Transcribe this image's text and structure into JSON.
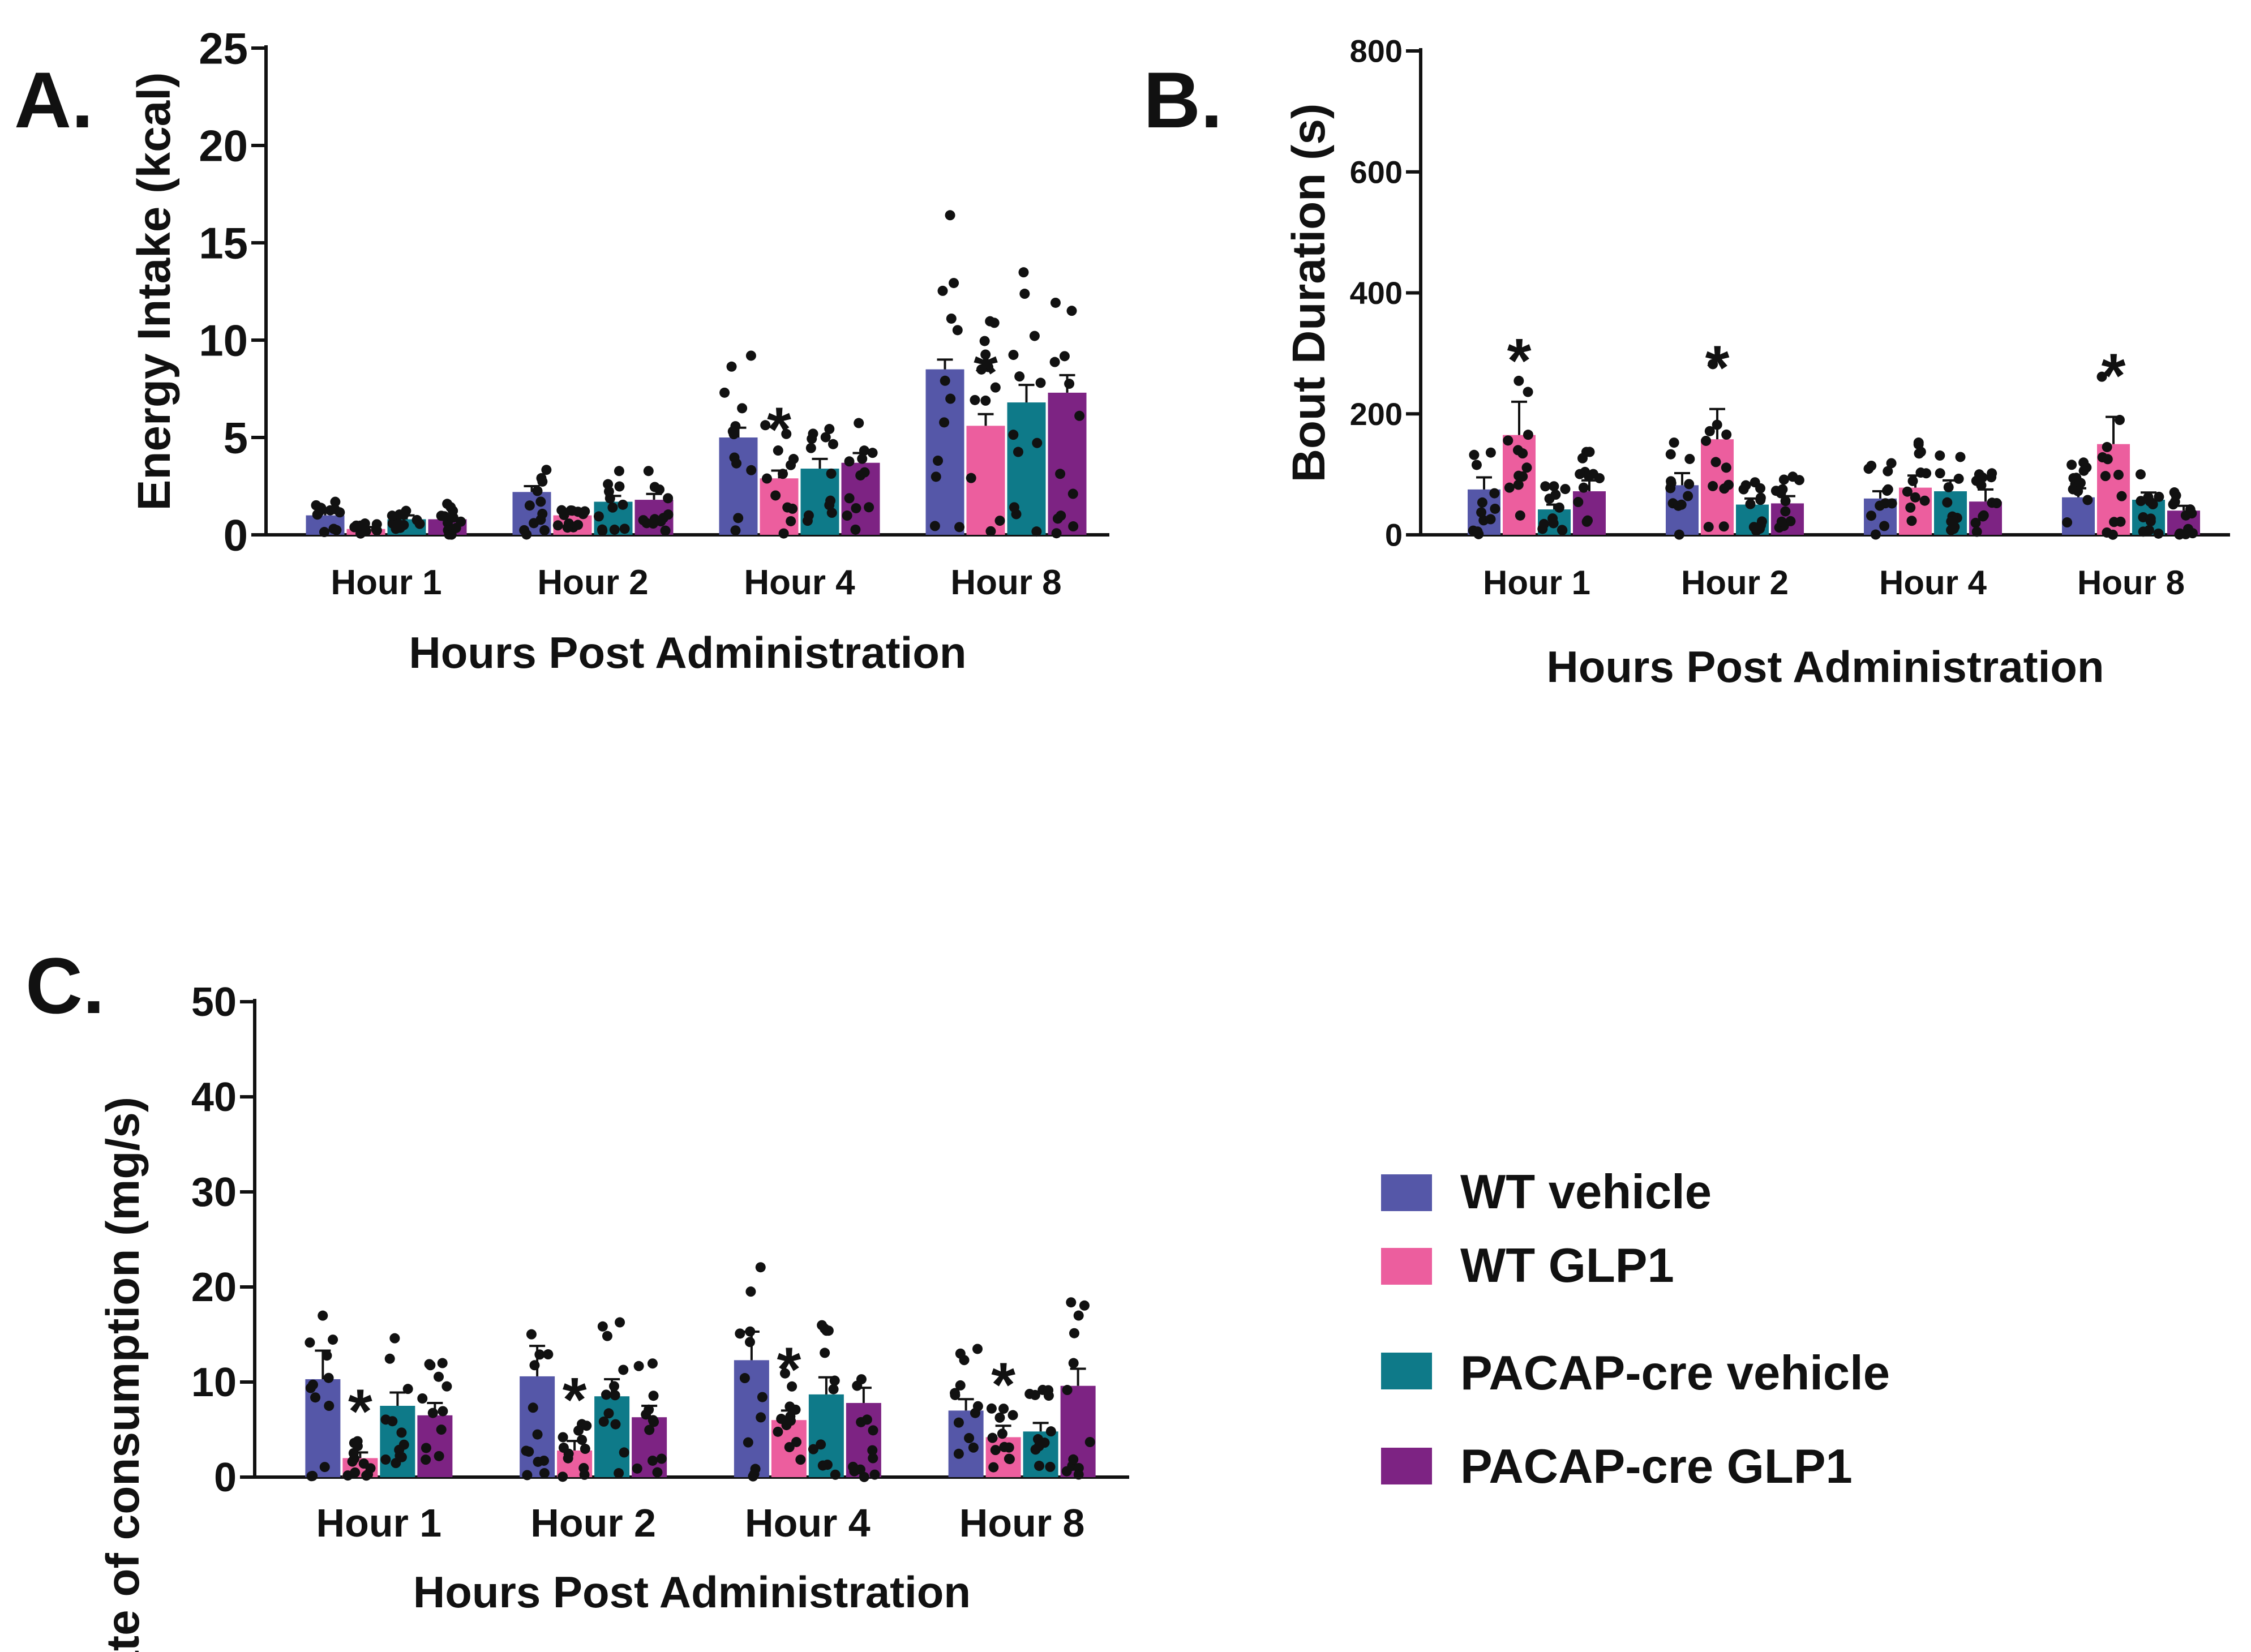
{
  "figure": {
    "legend": [
      {
        "label": "WT vehicle",
        "color": "#5557A8"
      },
      {
        "label": "WT GLP1",
        "color": "#EC5E9E"
      },
      {
        "label": "PACAP-cre vehicle",
        "color": "#0E7A89"
      },
      {
        "label": "PACAP-cre GLP1",
        "color": "#7D2383"
      }
    ]
  },
  "chart_data": [
    {
      "panel_label": "A.",
      "type": "bar",
      "title": "",
      "xlabel": "Hours Post Administration",
      "ylabel": "Energy Intake  (kcal)",
      "ylim": [
        0,
        25
      ],
      "yticks": [
        "0",
        "5",
        "10",
        "15",
        "20",
        "25"
      ],
      "categories": [
        "Hour 1",
        "Hour 2",
        "Hour 4",
        "Hour 8"
      ],
      "series": [
        {
          "name": "WT vehicle",
          "values": [
            1.0,
            2.2,
            5.0,
            8.5
          ],
          "err": [
            0.3,
            0.3,
            0.5,
            0.5
          ]
        },
        {
          "name": "WT GLP1",
          "values": [
            0.3,
            1.0,
            2.9,
            5.6
          ],
          "err": [
            0.1,
            0.2,
            0.4,
            0.6
          ]
        },
        {
          "name": "PACAP-cre vehicle",
          "values": [
            0.8,
            1.7,
            3.4,
            6.8
          ],
          "err": [
            0.2,
            0.3,
            0.5,
            0.9
          ]
        },
        {
          "name": "PACAP-cre GLP1",
          "values": [
            0.8,
            1.8,
            3.7,
            7.3
          ],
          "err": [
            0.2,
            0.3,
            0.5,
            0.9
          ]
        }
      ],
      "significance": [
        {
          "category": "Hour 4",
          "series": "WT GLP1",
          "mark": "*"
        },
        {
          "category": "Hour 8",
          "series": "WT GLP1",
          "mark": "*"
        }
      ]
    },
    {
      "panel_label": "B.",
      "type": "bar",
      "title": "",
      "xlabel": "Hours Post Administration",
      "ylabel": "Bout Duration  (s)",
      "ylim": [
        0,
        800
      ],
      "yticks": [
        "0",
        "200",
        "400",
        "600",
        "800"
      ],
      "categories": [
        "Hour 1",
        "Hour 2",
        "Hour 4",
        "Hour 8"
      ],
      "series": [
        {
          "name": "WT vehicle",
          "values": [
            75,
            82,
            60,
            62
          ],
          "err": [
            20,
            20,
            12,
            15
          ]
        },
        {
          "name": "WT GLP1",
          "values": [
            165,
            158,
            78,
            150
          ],
          "err": [
            55,
            50,
            20,
            45
          ]
        },
        {
          "name": "PACAP-cre vehicle",
          "values": [
            42,
            50,
            72,
            58
          ],
          "err": [
            8,
            10,
            18,
            12
          ]
        },
        {
          "name": "PACAP-cre GLP1",
          "values": [
            72,
            52,
            55,
            40
          ],
          "err": [
            18,
            12,
            20,
            8
          ]
        }
      ],
      "significance": [
        {
          "category": "Hour 1",
          "series": "WT GLP1",
          "mark": "*"
        },
        {
          "category": "Hour 2",
          "series": "WT GLP1",
          "mark": "*"
        },
        {
          "category": "Hour 8",
          "series": "WT GLP1",
          "mark": "*"
        }
      ]
    },
    {
      "panel_label": "C.",
      "type": "bar",
      "title": "",
      "xlabel": "Hours Post Administration",
      "ylabel": "Rate of consumption  (mg/s)",
      "ylim": [
        0,
        50
      ],
      "yticks": [
        "0",
        "10",
        "20",
        "30",
        "40",
        "50"
      ],
      "categories": [
        "Hour 1",
        "Hour 2",
        "Hour 4",
        "Hour 8"
      ],
      "series": [
        {
          "name": "WT vehicle",
          "values": [
            10.3,
            10.6,
            12.3,
            7.0
          ],
          "err": [
            3.0,
            3.2,
            3.0,
            1.2
          ]
        },
        {
          "name": "WT GLP1",
          "values": [
            2.0,
            2.8,
            6.0,
            4.2
          ],
          "err": [
            0.6,
            1.0,
            1.0,
            1.2
          ]
        },
        {
          "name": "PACAP-cre vehicle",
          "values": [
            7.5,
            8.5,
            8.7,
            4.8
          ],
          "err": [
            1.4,
            1.8,
            1.8,
            0.9
          ]
        },
        {
          "name": "PACAP-cre GLP1",
          "values": [
            6.5,
            6.3,
            7.8,
            9.6
          ],
          "err": [
            1.3,
            1.2,
            1.6,
            1.8
          ]
        }
      ],
      "significance": [
        {
          "category": "Hour 1",
          "series": "WT GLP1",
          "mark": "*"
        },
        {
          "category": "Hour 2",
          "series": "WT GLP1",
          "mark": "*"
        },
        {
          "category": "Hour 4",
          "series": "WT GLP1",
          "mark": "*"
        },
        {
          "category": "Hour 8",
          "series": "WT GLP1",
          "mark": "*"
        }
      ]
    }
  ]
}
